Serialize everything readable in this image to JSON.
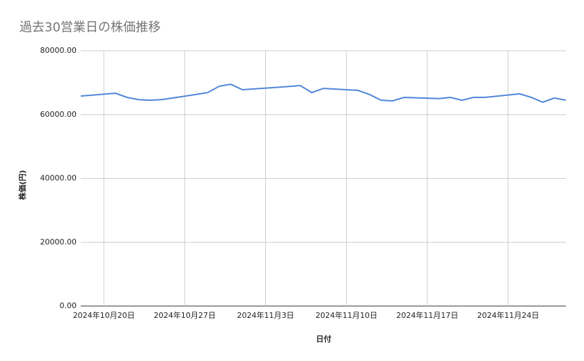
{
  "chart_data": {
    "type": "line",
    "title": "過去30営業日の株価推移",
    "x_label": "日付",
    "y_label": "株価(円)",
    "color": "#4f86d9",
    "grid": true,
    "x": [
      "2024-10-18",
      "2024-10-21",
      "2024-10-22",
      "2024-10-23",
      "2024-10-24",
      "2024-10-25",
      "2024-10-28",
      "2024-10-29",
      "2024-10-30",
      "2024-10-31",
      "2024-11-01",
      "2024-11-05",
      "2024-11-06",
      "2024-11-07",
      "2024-11-08",
      "2024-11-11",
      "2024-11-12",
      "2024-11-13",
      "2024-11-14",
      "2024-11-15",
      "2024-11-18",
      "2024-11-19",
      "2024-11-20",
      "2024-11-21",
      "2024-11-22",
      "2024-11-25",
      "2024-11-26",
      "2024-11-27",
      "2024-11-28",
      "2024-11-29"
    ],
    "values": [
      65800,
      66700,
      65400,
      64700,
      64500,
      64700,
      66300,
      66900,
      68900,
      69500,
      67800,
      68800,
      69100,
      66900,
      68200,
      67600,
      66300,
      64500,
      64300,
      65400,
      65000,
      65400,
      64500,
      65400,
      65400,
      66500,
      65400,
      63900,
      65200,
      64500
    ],
    "xlim": [
      "2024-10-18",
      "2024-11-29"
    ],
    "xticks": [
      {
        "value": "2024-10-20",
        "label": "2024年10月20日"
      },
      {
        "value": "2024-10-27",
        "label": "2024年10月27日"
      },
      {
        "value": "2024-11-03",
        "label": "2024年11月3日"
      },
      {
        "value": "2024-11-10",
        "label": "2024年11月10日"
      },
      {
        "value": "2024-11-17",
        "label": "2024年11月17日"
      },
      {
        "value": "2024-11-24",
        "label": "2024年11月24日"
      }
    ],
    "ylim": [
      0,
      80000
    ],
    "yticks": [
      {
        "value": 0,
        "label": "0.00"
      },
      {
        "value": 20000,
        "label": "20000.00"
      },
      {
        "value": 40000,
        "label": "40000.00"
      },
      {
        "value": 60000,
        "label": "60000.00"
      },
      {
        "value": 80000,
        "label": "80000.00"
      }
    ]
  }
}
